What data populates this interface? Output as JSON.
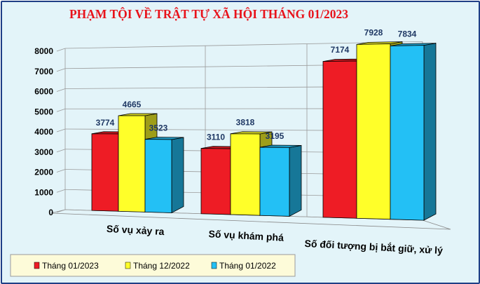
{
  "colors": {
    "background": "#e3f4f9",
    "title": "#e8131b",
    "data_label": "#1f3864",
    "legend_bg": "#fdfbd9"
  },
  "chart_data": {
    "type": "bar",
    "title": "PHẠM TỘI VỀ TRẬT TỰ XÃ HỘI THÁNG 01/2023",
    "categories": [
      "Số vụ xảy ra",
      "Số vụ khám phá",
      "Số đối tượng bị bắt giữ, xử lý"
    ],
    "series": [
      {
        "name": "Tháng 01/2023",
        "color": "#ee1c25",
        "values": [
          3774,
          3110,
          7174
        ]
      },
      {
        "name": "Tháng 12/2022",
        "color": "#ffff29",
        "values": [
          4665,
          3818,
          7928
        ]
      },
      {
        "name": "Tháng 01/2022",
        "color": "#23c0f5",
        "values": [
          3523,
          3195,
          7834
        ]
      }
    ],
    "ylim": [
      0,
      8000
    ],
    "yticks": [
      0,
      1000,
      2000,
      3000,
      4000,
      5000,
      6000,
      7000,
      8000
    ],
    "grid": true,
    "legend_position": "bottom-left"
  }
}
